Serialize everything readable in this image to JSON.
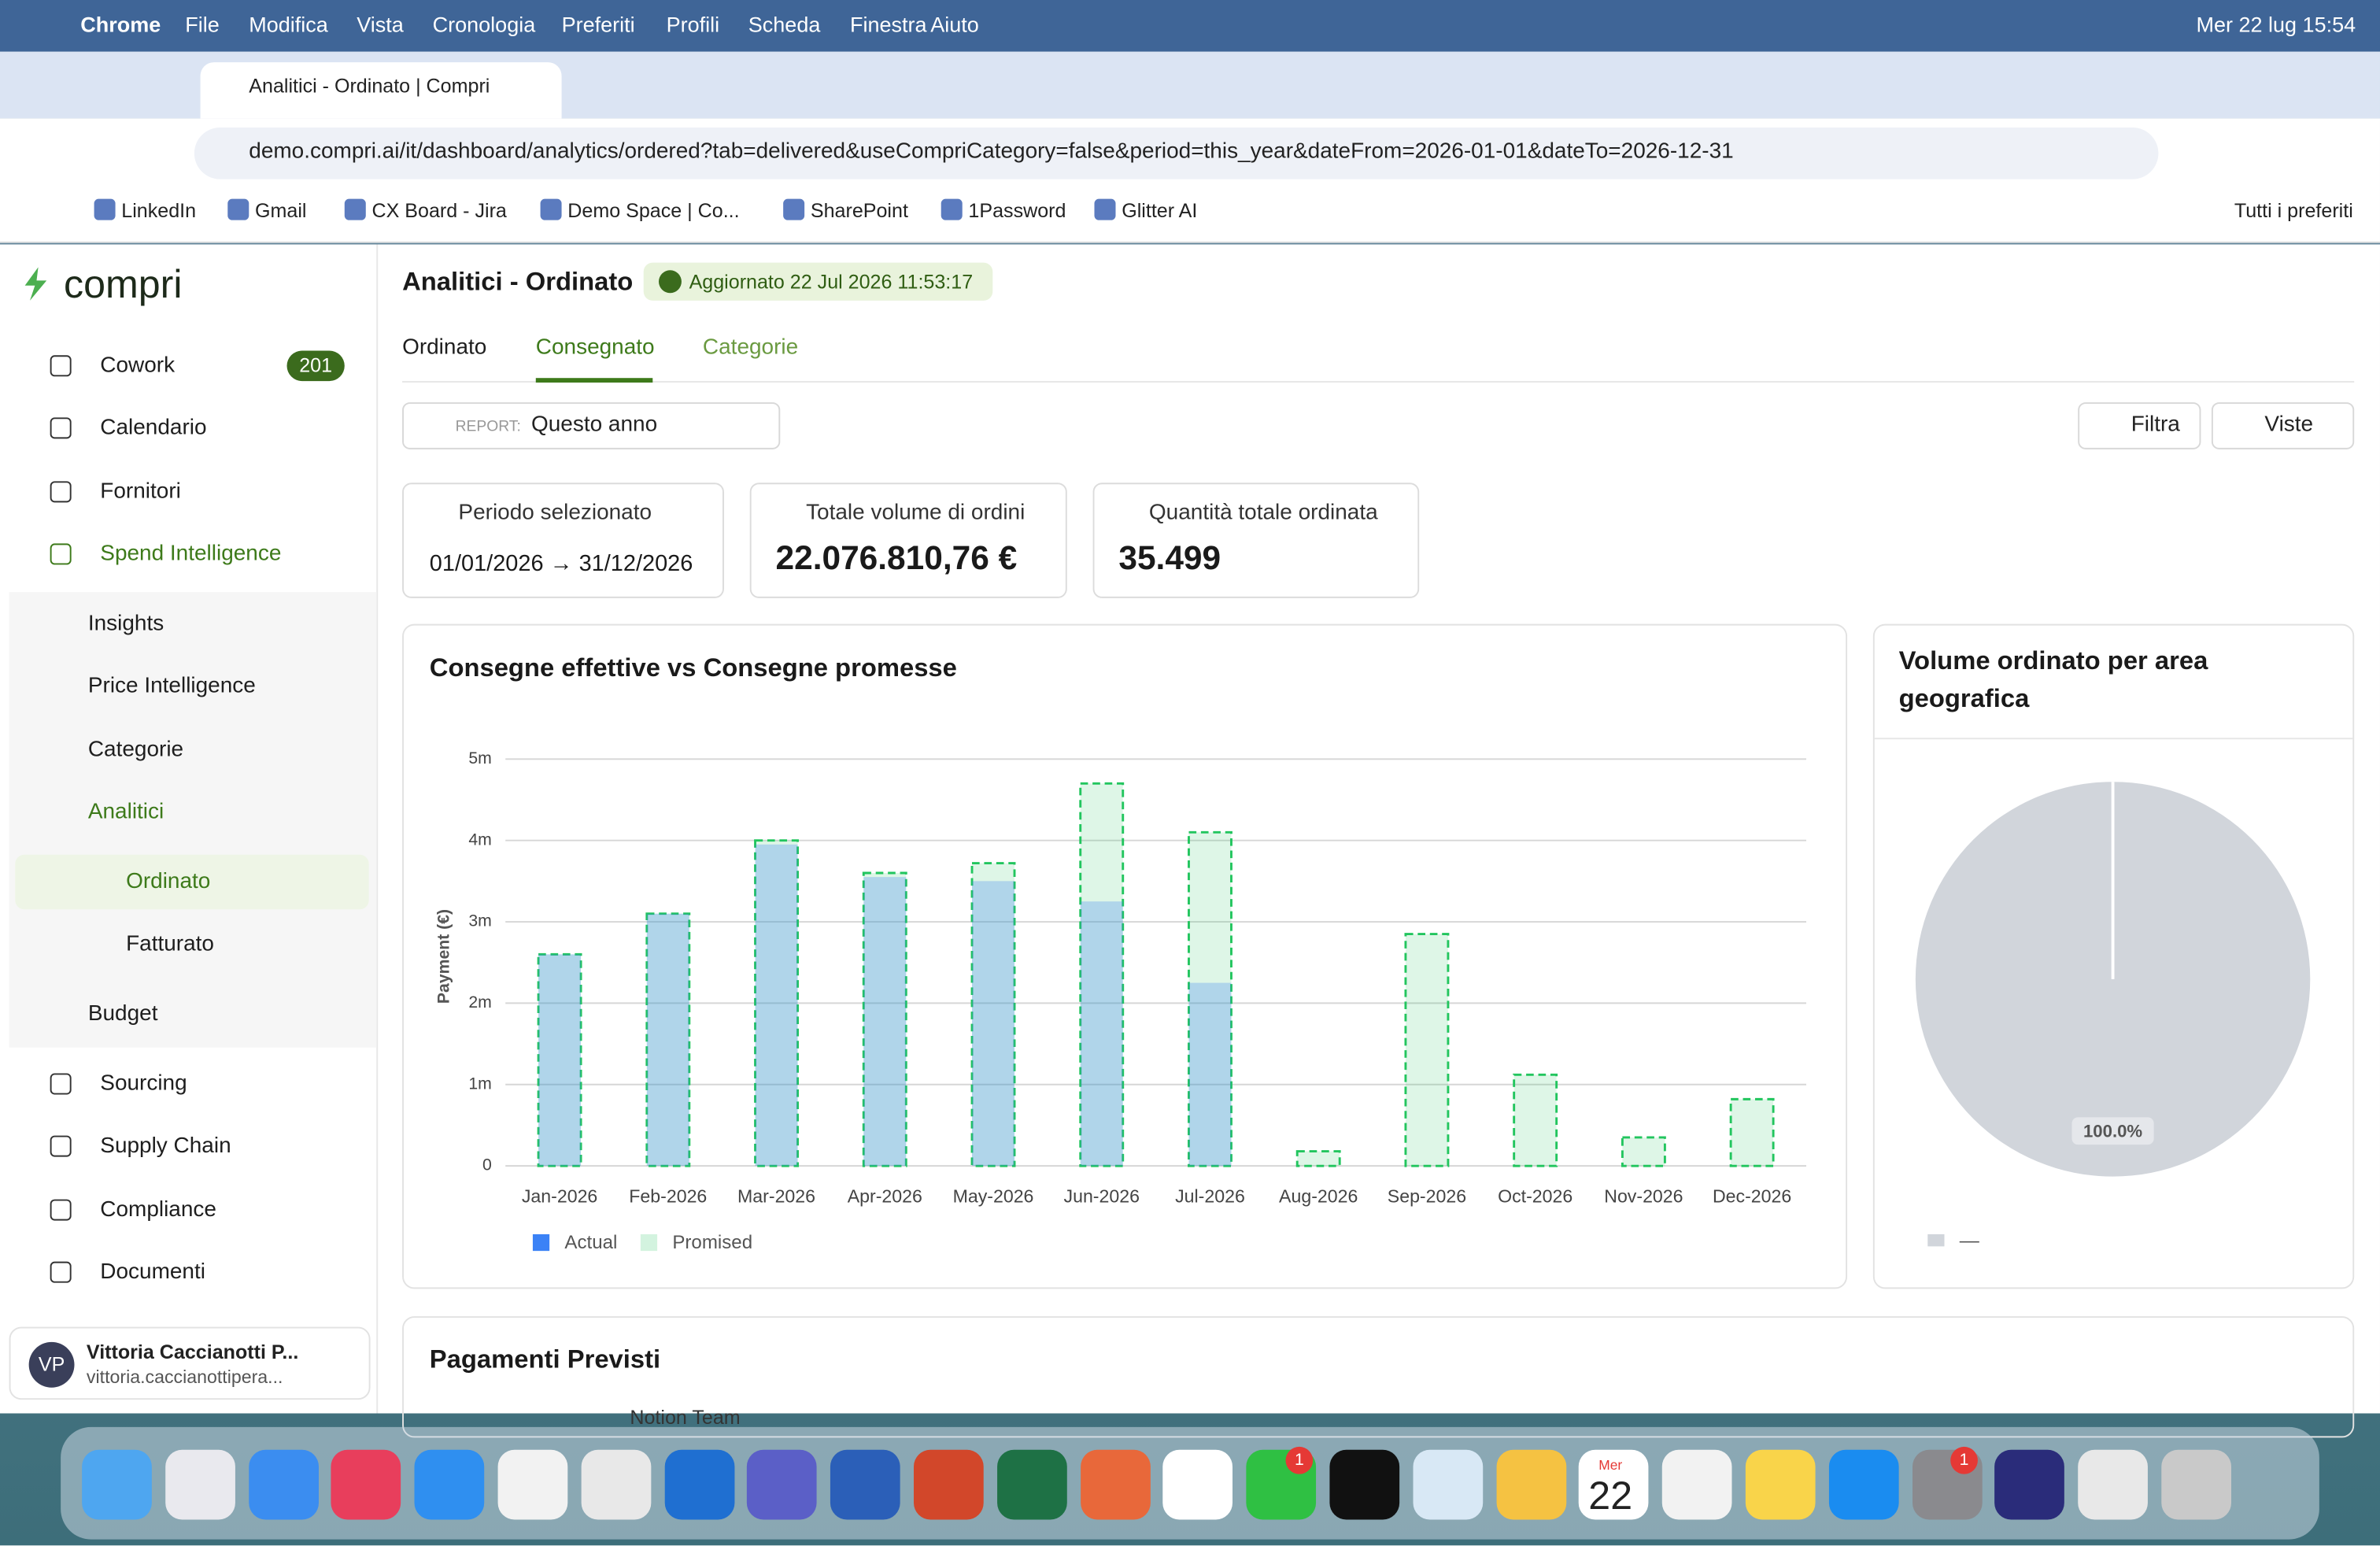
{
  "menubar": {
    "items": [
      "Chrome",
      "File",
      "Modifica",
      "Vista",
      "Cronologia",
      "Preferiti",
      "Profili",
      "Scheda",
      "Finestra",
      "Aiuto"
    ],
    "clock": "Mer 22 lug  15:54"
  },
  "browser": {
    "tab_title": "Analitici - Ordinato | Compri",
    "url": "demo.compri.ai/it/dashboard/analytics/ordered?tab=delivered&useCompriCategory=false&period=this_year&dateFrom=2026-01-01&dateTo=2026-12-31",
    "bookmarks": [
      "LinkedIn",
      "Gmail",
      "CX Board - Jira",
      "Demo Space | Co...",
      "SharePoint",
      "1Password",
      "Glitter AI"
    ],
    "bookmarks_folder": "Tutti i preferiti"
  },
  "sidebar": {
    "brand": "compri",
    "items": [
      {
        "label": "Cowork",
        "badge": "201"
      },
      {
        "label": "Calendario"
      },
      {
        "label": "Fornitori"
      },
      {
        "label": "Spend Intelligence"
      },
      {
        "label": "Insights"
      },
      {
        "label": "Price Intelligence"
      },
      {
        "label": "Categorie"
      },
      {
        "label": "Analitici"
      },
      {
        "label": "Ordinato"
      },
      {
        "label": "Fatturato"
      },
      {
        "label": "Budget"
      },
      {
        "label": "Sourcing"
      },
      {
        "label": "Supply Chain"
      },
      {
        "label": "Compliance"
      },
      {
        "label": "Documenti"
      }
    ],
    "user": {
      "initials": "VP",
      "name": "Vittoria Caccianotti P...",
      "email": "vittoria.caccianottipera..."
    }
  },
  "header": {
    "title": "Analitici - Ordinato",
    "updated": "Aggiornato 22 Jul 2026 11:53:17"
  },
  "tabs": [
    "Ordinato",
    "Consegnato",
    "Categorie"
  ],
  "report": {
    "label": "REPORT:",
    "value": "Questo anno"
  },
  "buttons": [
    "Filtra",
    "Viste"
  ],
  "kpis": [
    {
      "title": "Periodo selezionato",
      "value": "01/01/2026 → 31/12/2026"
    },
    {
      "title": "Totale volume di ordini",
      "value": "22.076.810,76 €"
    },
    {
      "title": "Quantità totale ordinata",
      "value": "35.499"
    }
  ],
  "chart_data": [
    {
      "type": "bar",
      "title": "Consegne effettive vs Consegne promesse",
      "y_label": "Payment (€)",
      "categories": [
        "Jan-2026",
        "Feb-2026",
        "Mar-2026",
        "Apr-2026",
        "May-2026",
        "Jun-2026",
        "Jul-2026",
        "Aug-2026",
        "Sep-2026",
        "Oct-2026",
        "Nov-2026",
        "Dec-2026"
      ],
      "series": [
        {
          "name": "Actual",
          "color": "#3b82f6",
          "values": [
            2600000,
            3100000,
            3950000,
            3550000,
            3500000,
            3250000,
            2250000,
            0,
            0,
            0,
            0,
            0
          ]
        },
        {
          "name": "Promised",
          "color": "#22c55e",
          "values": [
            2600000,
            3100000,
            4000000,
            3600000,
            3720000,
            4700000,
            4100000,
            180000,
            2850000,
            1120000,
            350000,
            820000
          ]
        }
      ],
      "ylim": [
        0,
        5000000
      ],
      "yticks": [
        0,
        {
          "value": 1000000,
          "label": "1m"
        },
        {
          "value": 2000000,
          "label": "2m"
        },
        {
          "value": 3000000,
          "label": "3m"
        },
        {
          "value": 4000000,
          "label": "4m"
        },
        {
          "value": 5000000,
          "label": "5m"
        }
      ],
      "grid": true
    },
    {
      "type": "pie",
      "title": "Volume ordinato per area geografica",
      "categories": [
        "—"
      ],
      "values": [
        100
      ],
      "value_labels": [
        "100.0%"
      ],
      "colors": [
        "#d1d5db"
      ]
    }
  ],
  "section": {
    "title": "Pagamenti Previsti",
    "peek": "Notion Team"
  },
  "dock": {
    "badges": [
      "1",
      "1"
    ],
    "calendar_day": "Mer",
    "calendar_date": "22"
  }
}
